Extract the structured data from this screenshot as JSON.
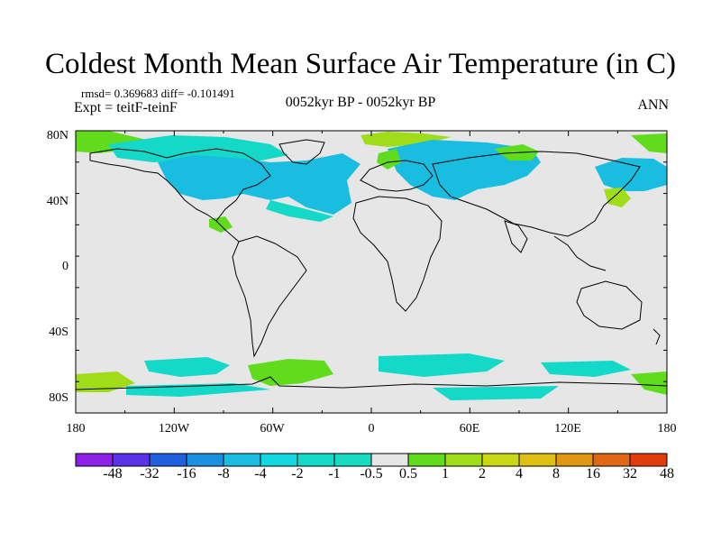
{
  "title": "Coldest Month Mean Surface Air Temperature (in C)",
  "stats": "rmsd= 0.369683 diff= -0.101491",
  "experiment": "Expt = teitF-teinF",
  "period": "0052kyr BP - 0052kyr BP",
  "season": "ANN",
  "map": {
    "lat_labels": [
      "80N",
      "40N",
      "0",
      "40S",
      "80S"
    ],
    "lon_labels": [
      "180",
      "120W",
      "60W",
      "0",
      "60E",
      "120E",
      "180"
    ],
    "background_color": "#e6e6e6"
  },
  "colorbar": {
    "labels": [
      "-48",
      "-32",
      "-16",
      "-8",
      "-4",
      "-2",
      "-1",
      "-0.5",
      "0.5",
      "1",
      "2",
      "4",
      "8",
      "16",
      "32",
      "48"
    ],
    "colors": [
      "#8c20e8",
      "#5a33e8",
      "#2060e0",
      "#1c90e0",
      "#18bde0",
      "#14d8e0",
      "#14d8c8",
      "#18dcc0",
      "#e6e6e6",
      "#60dc1c",
      "#a0dc18",
      "#c8d814",
      "#e0c014",
      "#e09814",
      "#e06814",
      "#e03c0c"
    ]
  }
}
